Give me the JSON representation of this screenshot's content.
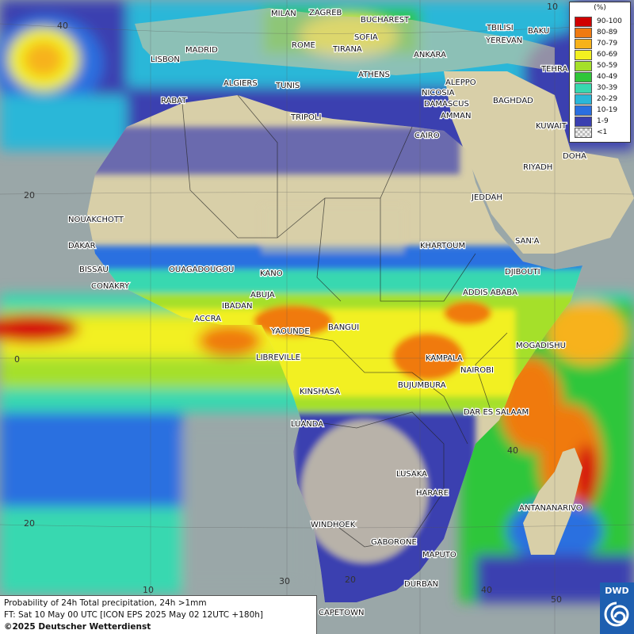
{
  "map": {
    "cities": [
      "MILAN",
      "ZAGREB",
      "BUCHAREST",
      "TBILISI",
      "BAKU",
      "MADRID",
      "ROME",
      "SOFIA",
      "YEREVAN",
      "LISBON",
      "TIRANA",
      "ANKARA",
      "TEHRA",
      "ALGIERS",
      "TUNIS",
      "ATHENS",
      "RABAT",
      "ALEPPO",
      "NICOSIA",
      "BAGHDAD",
      "TRIPOLI",
      "DAMASCUS",
      "AMMAN",
      "KUWAIT",
      "CAIRO",
      "DOHA",
      "RIYADH",
      "NOUAKCHOTT",
      "JEDDAH",
      "DAKAR",
      "SAN'A",
      "KHARTOUM",
      "BISSAU",
      "OUAGADOUGOU",
      "DJIBOUTI",
      "KANO",
      "CONAKRY",
      "ABUJA",
      "ADDIS ABABA",
      "IBADAN",
      "ACCRA",
      "YAOUNDE",
      "BANGUI",
      "MOGADISHU",
      "LIBREVILLE",
      "KAMPALA",
      "NAIROBI",
      "BUJUMBURA",
      "KINSHASA",
      "DAR ES SALAAM",
      "LUANDA",
      "LUSAKA",
      "HARARE",
      "ANTANANARIVO",
      "WINDHOEK",
      "GABORONE",
      "MAPUTO",
      "DURBAN",
      "CAPETOWN"
    ],
    "grid_labels": [
      "40",
      "20",
      "0",
      "20",
      "10",
      "20",
      "30",
      "40",
      "50",
      "10",
      "40"
    ],
    "colors": {
      "sea": "#9aa7a8",
      "land": "#d8cfa8",
      "p1": "#3a3fb0",
      "p10": "#2a6fe0",
      "p20": "#2ab7d8",
      "p30": "#38d8b0",
      "p40": "#2fc63a",
      "p50": "#a5e02a",
      "p60": "#f2f020",
      "p70": "#f7b21a",
      "p80": "#f07a10",
      "p90": "#d51010"
    }
  },
  "legend": {
    "unit": "(%)",
    "items": [
      {
        "label": "90-100",
        "color": "#d00000"
      },
      {
        "label": "80-89",
        "color": "#f07a10"
      },
      {
        "label": "70-79",
        "color": "#f7b21a"
      },
      {
        "label": "60-69",
        "color": "#f2f020"
      },
      {
        "label": "50-59",
        "color": "#a5e02a"
      },
      {
        "label": "40-49",
        "color": "#2fc63a"
      },
      {
        "label": "30-39",
        "color": "#38d8b0"
      },
      {
        "label": "20-29",
        "color": "#2ab7d8"
      },
      {
        "label": "10-19",
        "color": "#2a6fe0"
      },
      {
        "label": "1-9",
        "color": "#3a3fb0"
      },
      {
        "label": "<1",
        "color": "#cfcfcf"
      }
    ]
  },
  "info": {
    "line1": "Probability of 24h Total precipitation, 24h >1mm",
    "line2": "FT: Sat 10 May 00 UTC [ICON EPS 2025 May 02 12UTC +180h]",
    "line3": "©2025 Deutscher Wetterdienst"
  },
  "logo": {
    "text": "DWD"
  }
}
